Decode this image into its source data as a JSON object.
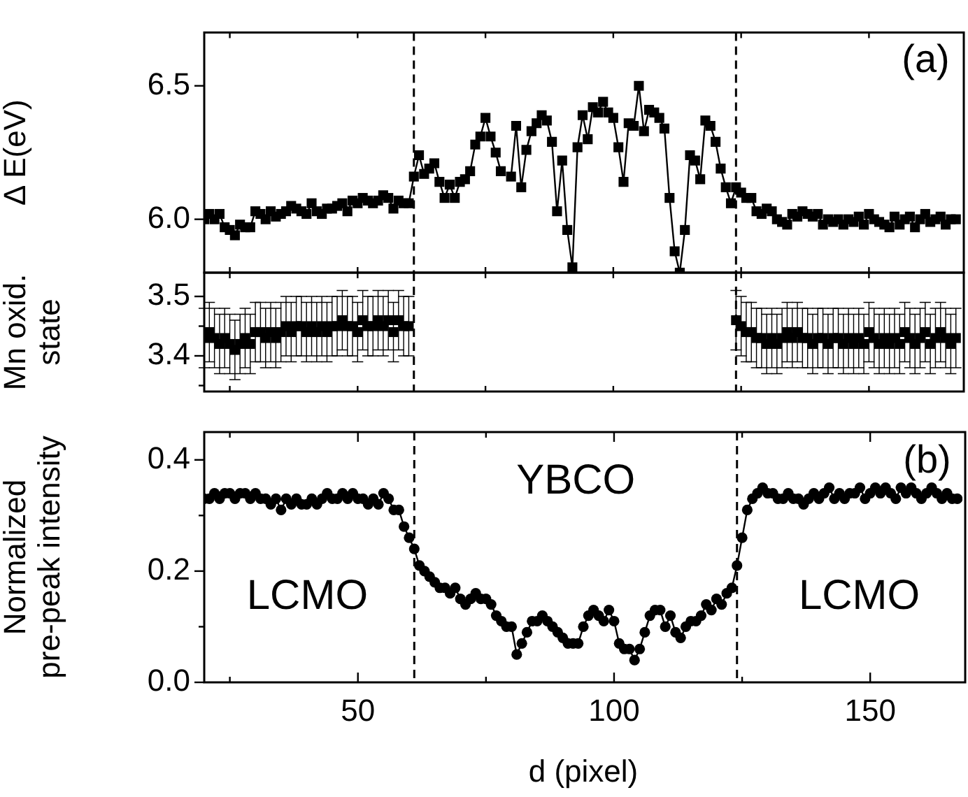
{
  "chart_data": [
    {
      "type": "line",
      "ylabel": "Δ E(eV)",
      "xlim": [
        20,
        168
      ],
      "xticks": [
        {
          "value": 25,
          "label": null
        },
        {
          "value": 50,
          "label": null
        },
        {
          "value": 75,
          "label": null
        },
        {
          "value": 100,
          "label": null
        },
        {
          "value": 125,
          "label": null
        },
        {
          "value": 150,
          "label": null
        }
      ],
      "ylim": [
        5.8,
        6.7
      ],
      "yticks": [
        {
          "value": 6,
          "label": "6.0"
        },
        6.5
      ],
      "tick_labels": "y",
      "grid": false,
      "legend": false,
      "marker": "square",
      "line_style": "solid",
      "x": [
        20,
        21,
        22,
        23,
        24,
        25,
        26,
        27,
        28,
        29,
        30,
        31,
        32,
        33,
        34,
        35,
        36,
        37,
        38,
        39,
        40,
        41,
        42,
        43,
        44,
        45,
        46,
        47,
        48,
        49,
        50,
        51,
        52,
        53,
        54,
        55,
        56,
        57,
        58,
        59,
        60,
        61,
        62,
        63,
        64,
        65,
        66,
        67,
        68,
        69,
        70,
        71,
        72,
        73,
        74,
        75,
        76,
        77,
        78,
        79,
        80,
        81,
        82,
        83,
        84,
        85,
        86,
        87,
        88,
        89,
        90,
        91,
        92,
        93,
        94,
        95,
        96,
        97,
        98,
        99,
        100,
        101,
        102,
        103,
        104,
        105,
        106,
        107,
        108,
        109,
        110,
        111,
        112,
        113,
        114,
        115,
        116,
        117,
        118,
        119,
        120,
        121,
        122,
        123,
        124,
        125,
        126,
        127,
        128,
        129,
        130,
        131,
        132,
        133,
        134,
        135,
        136,
        137,
        138,
        139,
        140,
        141,
        142,
        143,
        144,
        145,
        146,
        147,
        148,
        149,
        150,
        151,
        152,
        153,
        154,
        155,
        156,
        157,
        158,
        159,
        160,
        161,
        162,
        163,
        164,
        165,
        166,
        167
      ],
      "series": [
        {
          "color": "#000000",
          "values": [
            6.0,
            6.02,
            6.0,
            6.02,
            5.97,
            5.96,
            5.94,
            5.98,
            5.97,
            5.97,
            6.03,
            6.02,
            6.0,
            6.03,
            6.01,
            6.02,
            6.03,
            6.05,
            6.04,
            6.03,
            6.02,
            6.06,
            6.03,
            6.02,
            6.04,
            6.04,
            6.05,
            6.06,
            6.03,
            6.07,
            6.06,
            6.08,
            6.07,
            6.06,
            6.07,
            6.09,
            6.08,
            6.04,
            6.07,
            6.06,
            6.06,
            6.16,
            6.24,
            6.17,
            6.19,
            6.21,
            6.14,
            6.08,
            6.13,
            6.08,
            6.14,
            6.15,
            6.18,
            6.28,
            6.31,
            6.38,
            6.31,
            6.25,
            6.18,
            null,
            6.16,
            6.35,
            6.12,
            6.26,
            6.33,
            6.36,
            6.39,
            6.37,
            6.29,
            6.03,
            6.22,
            5.96,
            5.82,
            6.27,
            6.39,
            6.3,
            6.42,
            6.4,
            6.44,
            6.4,
            6.38,
            6.27,
            6.14,
            6.36,
            6.35,
            6.5,
            6.33,
            6.41,
            6.4,
            6.38,
            6.34,
            6.08,
            5.88,
            5.8,
            5.96,
            6.24,
            6.22,
            6.15,
            6.37,
            6.35,
            6.29,
            6.19,
            6.12,
            6.06,
            6.12,
            6.1,
            6.08,
            6.08,
            6.03,
            6.02,
            6.04,
            6.03,
            6.0,
            5.99,
            5.98,
            6.02,
            6.01,
            6.03,
            6.02,
            6.01,
            6.02,
            5.98,
            6.0,
            5.99,
            6.0,
            5.98,
            6.0,
            5.99,
            6.01,
            5.98,
            6.02,
            6.0,
            5.99,
            5.98,
            5.97,
            6.01,
            5.98,
            6.0,
            6.01,
            5.97,
            6.0,
            6.02,
            5.99,
            6.0,
            6.01,
            5.98,
            6.0,
            6.0
          ]
        }
      ],
      "ref_lines": [
        {
          "axis": "x",
          "value": 61,
          "line_style": "dashed"
        },
        {
          "axis": "x",
          "value": 124,
          "line_style": "dashed"
        }
      ],
      "annotations": [
        "(a)"
      ]
    },
    {
      "type": "scatter",
      "ylabel": "Mn oxid. state",
      "xlim": [
        20,
        168
      ],
      "xticks": [
        {
          "value": 25,
          "label": null
        },
        {
          "value": 50,
          "label": null
        },
        {
          "value": 75,
          "label": null
        },
        {
          "value": 100,
          "label": null
        },
        {
          "value": 125,
          "label": null
        },
        {
          "value": 150,
          "label": null
        }
      ],
      "ylim": [
        3.34,
        3.54
      ],
      "yticks": [
        {
          "value": 3.35,
          "label": null
        },
        3.4,
        {
          "value": 3.45,
          "label": null
        },
        3.5
      ],
      "tick_labels": "y",
      "grid": false,
      "legend": false,
      "marker": "square",
      "x": [
        20,
        21,
        22,
        23,
        24,
        25,
        26,
        27,
        28,
        29,
        30,
        31,
        32,
        33,
        34,
        35,
        36,
        37,
        38,
        39,
        40,
        41,
        42,
        43,
        44,
        45,
        46,
        47,
        48,
        49,
        50,
        51,
        52,
        53,
        54,
        55,
        56,
        57,
        58,
        59,
        60,
        124,
        125,
        126,
        127,
        128,
        129,
        130,
        131,
        132,
        133,
        134,
        135,
        136,
        137,
        138,
        139,
        140,
        141,
        142,
        143,
        144,
        145,
        146,
        147,
        148,
        149,
        150,
        151,
        152,
        153,
        154,
        155,
        156,
        157,
        158,
        159,
        160,
        161,
        162,
        163,
        164,
        165,
        166,
        167
      ],
      "series": [
        {
          "color": "#000000",
          "values": [
            3.43,
            3.44,
            3.43,
            3.42,
            3.43,
            3.42,
            3.41,
            3.42,
            3.43,
            3.42,
            3.44,
            3.44,
            3.43,
            3.44,
            3.43,
            3.44,
            3.45,
            3.44,
            3.45,
            3.45,
            3.44,
            3.45,
            3.44,
            3.45,
            3.44,
            3.45,
            3.45,
            3.46,
            3.45,
            3.45,
            3.44,
            3.46,
            3.45,
            3.45,
            3.46,
            3.45,
            3.46,
            3.44,
            3.46,
            3.45,
            3.45,
            3.46,
            3.45,
            3.44,
            3.44,
            3.43,
            3.43,
            3.42,
            3.43,
            3.42,
            3.43,
            3.44,
            3.43,
            3.44,
            3.43,
            3.43,
            3.42,
            3.43,
            3.43,
            3.42,
            3.43,
            3.43,
            3.42,
            3.43,
            3.42,
            3.43,
            3.42,
            3.44,
            3.43,
            3.42,
            3.43,
            3.42,
            3.43,
            3.42,
            3.44,
            3.43,
            3.42,
            3.43,
            3.44,
            3.42,
            3.43,
            3.44,
            3.43,
            3.42,
            3.43
          ],
          "errors": [
            0.05,
            0.05,
            0.05,
            0.05,
            0.05,
            0.05,
            0.05,
            0.05,
            0.05,
            0.05,
            0.05,
            0.05,
            0.05,
            0.05,
            0.05,
            0.05,
            0.05,
            0.05,
            0.05,
            0.05,
            0.05,
            0.05,
            0.05,
            0.05,
            0.05,
            0.05,
            0.05,
            0.05,
            0.05,
            0.05,
            0.05,
            0.05,
            0.05,
            0.05,
            0.05,
            0.05,
            0.05,
            0.05,
            0.05,
            0.05,
            0.05,
            0.05,
            0.05,
            0.05,
            0.05,
            0.05,
            0.05,
            0.05,
            0.05,
            0.05,
            0.05,
            0.05,
            0.05,
            0.05,
            0.05,
            0.05,
            0.05,
            0.05,
            0.05,
            0.05,
            0.05,
            0.05,
            0.05,
            0.05,
            0.05,
            0.05,
            0.05,
            0.05,
            0.05,
            0.05,
            0.05,
            0.05,
            0.05,
            0.05,
            0.05,
            0.05,
            0.05,
            0.05,
            0.05,
            0.05,
            0.05,
            0.05,
            0.05,
            0.05,
            0.05
          ]
        }
      ],
      "ref_lines": [
        {
          "axis": "x",
          "value": 61,
          "line_style": "dashed"
        },
        {
          "axis": "x",
          "value": 124,
          "line_style": "dashed"
        }
      ]
    },
    {
      "type": "line",
      "ylabel": "Normalized pre-peak intensity",
      "xlabel": "d (pixel)",
      "xlim": [
        20,
        168
      ],
      "xticks": [
        {
          "value": 25,
          "label": null
        },
        50,
        {
          "value": 75,
          "label": null
        },
        100,
        {
          "value": 125,
          "label": null
        },
        150
      ],
      "ylim": [
        0,
        0.45
      ],
      "yticks": [
        {
          "value": 0,
          "label": "0.0"
        },
        {
          "value": 0.1,
          "label": null
        },
        0.2,
        {
          "value": 0.3,
          "label": null
        },
        0.4
      ],
      "grid": false,
      "legend": false,
      "marker": "circle",
      "line_style": "solid",
      "x": [
        20,
        21,
        22,
        23,
        24,
        25,
        26,
        27,
        28,
        29,
        30,
        31,
        32,
        33,
        34,
        35,
        36,
        37,
        38,
        39,
        40,
        41,
        42,
        43,
        44,
        45,
        46,
        47,
        48,
        49,
        50,
        51,
        52,
        53,
        54,
        55,
        56,
        57,
        58,
        59,
        60,
        61,
        62,
        63,
        64,
        65,
        66,
        67,
        68,
        69,
        70,
        71,
        72,
        73,
        74,
        75,
        76,
        77,
        78,
        79,
        80,
        81,
        82,
        83,
        84,
        85,
        86,
        87,
        88,
        89,
        90,
        91,
        92,
        93,
        94,
        95,
        96,
        97,
        98,
        99,
        100,
        101,
        102,
        103,
        104,
        105,
        106,
        107,
        108,
        109,
        110,
        111,
        112,
        113,
        114,
        115,
        116,
        117,
        118,
        119,
        120,
        121,
        122,
        123,
        124,
        125,
        126,
        127,
        128,
        129,
        130,
        131,
        132,
        133,
        134,
        135,
        136,
        137,
        138,
        139,
        140,
        141,
        142,
        143,
        144,
        145,
        146,
        147,
        148,
        149,
        150,
        151,
        152,
        153,
        154,
        155,
        156,
        157,
        158,
        159,
        160,
        161,
        162,
        163,
        164,
        165,
        166,
        167
      ],
      "series": [
        {
          "color": "#000000",
          "values": [
            0.33,
            0.33,
            0.34,
            0.33,
            0.34,
            0.34,
            0.33,
            0.34,
            0.34,
            0.33,
            0.34,
            0.33,
            0.33,
            0.32,
            0.33,
            0.31,
            0.33,
            0.32,
            0.33,
            0.32,
            0.32,
            0.33,
            0.32,
            0.33,
            0.34,
            0.33,
            0.33,
            0.34,
            0.33,
            0.34,
            0.33,
            0.33,
            0.32,
            0.33,
            0.32,
            0.34,
            0.33,
            0.31,
            0.31,
            0.28,
            0.26,
            0.24,
            0.21,
            0.2,
            0.19,
            0.18,
            0.17,
            0.17,
            0.16,
            0.17,
            0.15,
            0.14,
            0.15,
            0.16,
            0.15,
            0.15,
            0.14,
            0.12,
            0.11,
            0.1,
            0.1,
            0.05,
            0.07,
            0.09,
            0.11,
            0.11,
            0.12,
            0.11,
            0.1,
            0.09,
            0.08,
            0.07,
            0.07,
            0.07,
            0.1,
            0.12,
            0.13,
            0.12,
            0.11,
            0.13,
            0.11,
            0.07,
            0.06,
            0.06,
            0.04,
            0.06,
            0.09,
            0.12,
            0.13,
            0.13,
            0.1,
            0.12,
            0.09,
            0.08,
            0.1,
            0.11,
            0.11,
            0.12,
            0.14,
            0.13,
            0.15,
            0.14,
            0.16,
            0.17,
            0.21,
            0.26,
            0.31,
            0.33,
            0.34,
            0.35,
            0.34,
            0.34,
            0.33,
            0.33,
            0.34,
            0.33,
            0.33,
            0.32,
            0.33,
            0.34,
            0.33,
            0.34,
            0.35,
            0.33,
            0.34,
            0.33,
            0.34,
            0.34,
            0.35,
            0.33,
            0.34,
            0.35,
            0.34,
            0.35,
            0.34,
            0.33,
            0.35,
            0.34,
            0.35,
            0.34,
            0.33,
            0.34,
            0.35,
            0.34,
            0.33,
            0.34,
            0.33,
            0.33
          ]
        }
      ],
      "ref_lines": [
        {
          "axis": "x",
          "value": 61,
          "line_style": "dashed"
        },
        {
          "axis": "x",
          "value": 124,
          "line_style": "dashed"
        }
      ],
      "annotations": [
        "(b)",
        "LCMO",
        "YBCO",
        "LCMO"
      ]
    }
  ]
}
